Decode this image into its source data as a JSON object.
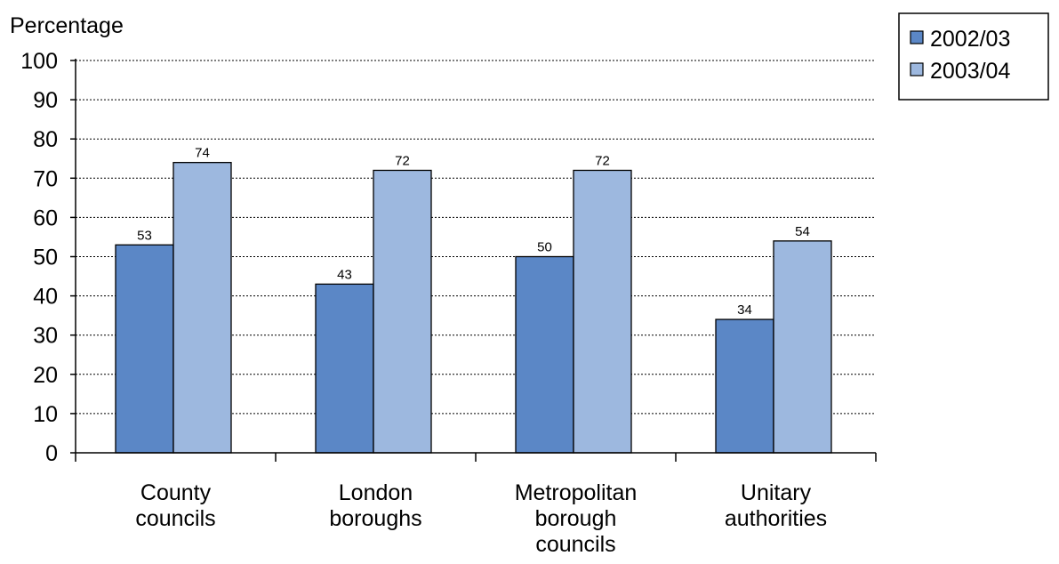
{
  "chart_data": {
    "type": "bar",
    "ylabel": "Percentage",
    "ylim": [
      0,
      100
    ],
    "yticks": [
      0,
      10,
      20,
      30,
      40,
      50,
      60,
      70,
      80,
      90,
      100
    ],
    "grid": true,
    "legend_position": "top-right",
    "categories": [
      [
        "County",
        "councils"
      ],
      [
        "London",
        "boroughs"
      ],
      [
        "Metropolitan",
        "borough",
        "councils"
      ],
      [
        "Unitary",
        "authorities"
      ]
    ],
    "series": [
      {
        "name": "2002/03",
        "color": "#5b87c6",
        "values": [
          53,
          43,
          50,
          34
        ]
      },
      {
        "name": "2003/04",
        "color": "#9db8df",
        "values": [
          74,
          72,
          72,
          54
        ]
      }
    ]
  }
}
